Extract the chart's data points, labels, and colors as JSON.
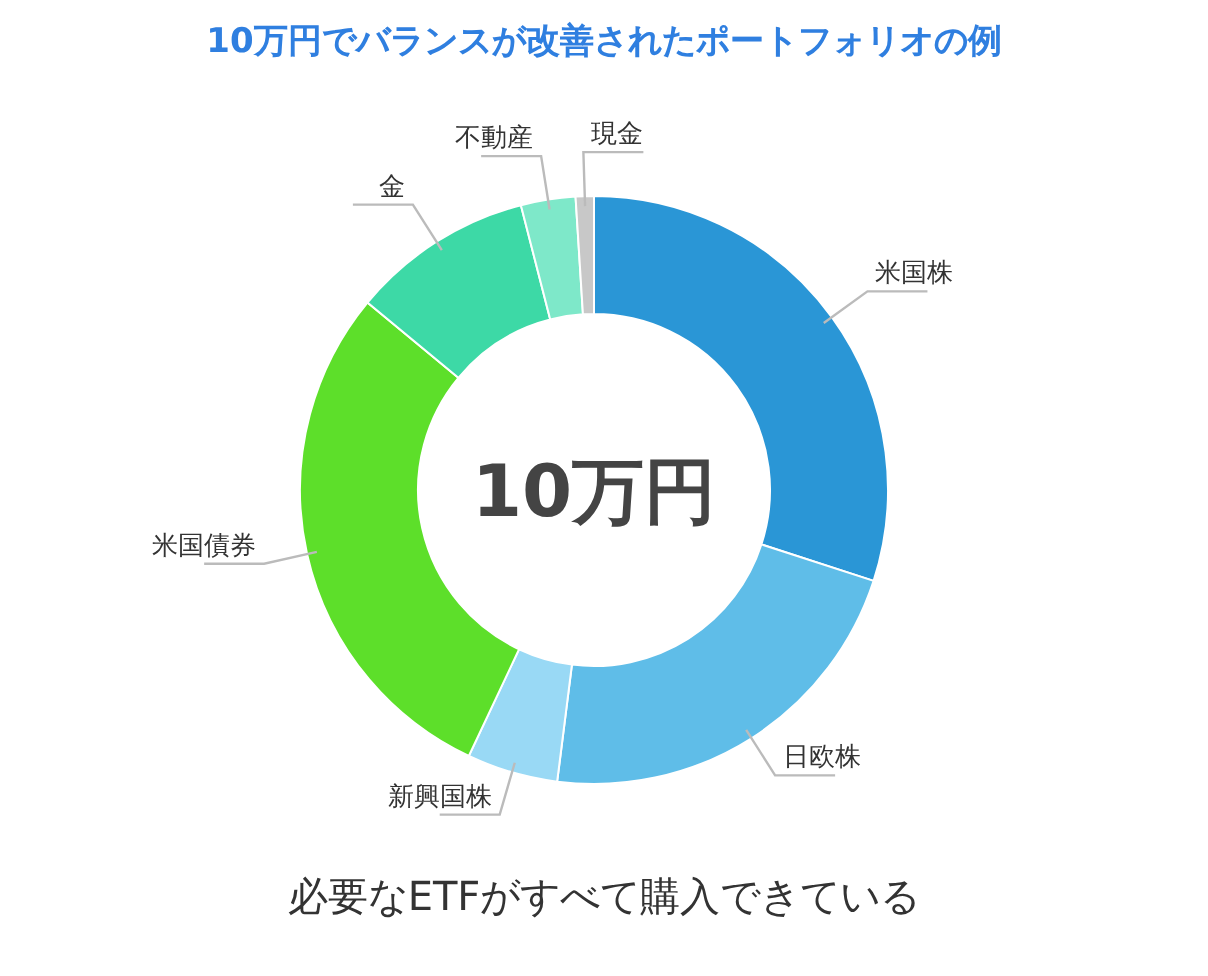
{
  "chart_data": {
    "type": "donut",
    "title": "10万円でバランスが改善されたポートフォリオの例",
    "categories": [
      "米国株",
      "日欧株",
      "新興国株",
      "米国債券",
      "金",
      "不動産",
      "現金"
    ],
    "values": [
      30,
      22,
      5,
      29,
      10,
      3,
      1
    ],
    "colors": [
      "#2a96d6",
      "#5fbde8",
      "#99d9f5",
      "#5ddf2a",
      "#3dd9a6",
      "#7ee8c9",
      "#c8c8c8"
    ],
    "annotations": [
      "10万円",
      "必要なETFがすべて購入できている"
    ]
  }
}
